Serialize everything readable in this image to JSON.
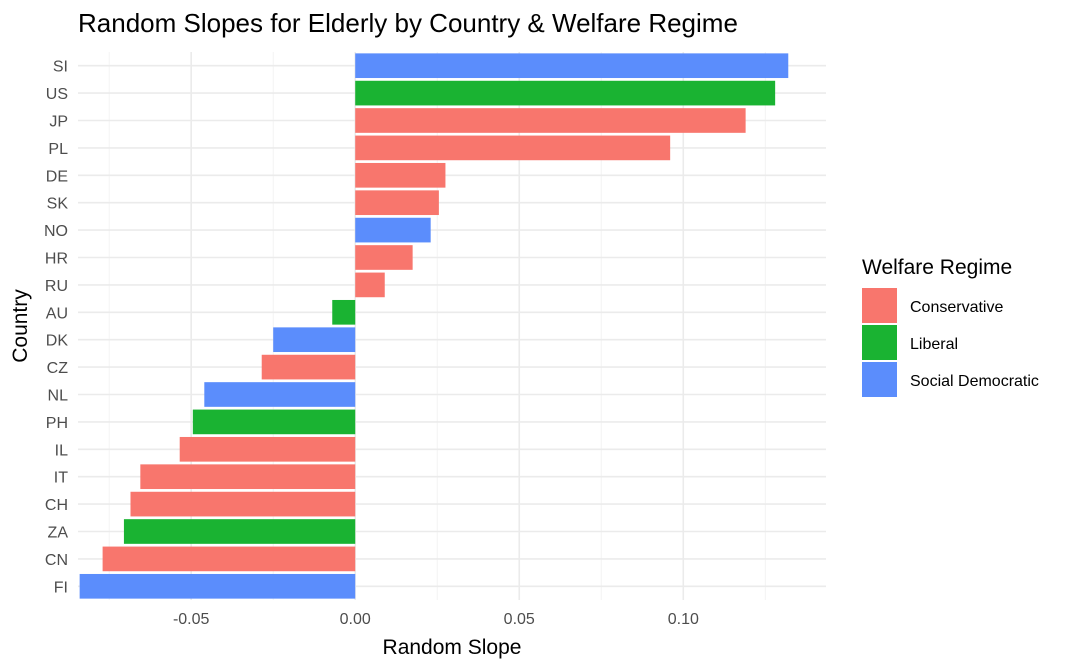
{
  "chart_data": {
    "type": "bar",
    "orientation": "horizontal",
    "title": "Random Slopes for Elderly by Country & Welfare Regime",
    "xlabel": "Random Slope",
    "ylabel": "Country",
    "xlim": [
      -0.0845,
      0.1435
    ],
    "x_ticks": [
      -0.05,
      0.0,
      0.05,
      0.1
    ],
    "x_tick_labels": [
      "-0.05",
      "0.00",
      "0.05",
      "0.10"
    ],
    "grid": true,
    "legend": {
      "title": "Welfare Regime",
      "position": "right",
      "entries": [
        {
          "name": "Conservative",
          "color": "#F8766D"
        },
        {
          "name": "Liberal",
          "color": "#1AB332"
        },
        {
          "name": "Social Democratic",
          "color": "#5B8DFC"
        }
      ]
    },
    "bars": [
      {
        "category": "SI",
        "value": 0.132,
        "group": "Social Democratic"
      },
      {
        "category": "US",
        "value": 0.128,
        "group": "Liberal"
      },
      {
        "category": "JP",
        "value": 0.119,
        "group": "Conservative"
      },
      {
        "category": "PL",
        "value": 0.096,
        "group": "Conservative"
      },
      {
        "category": "DE",
        "value": 0.0275,
        "group": "Conservative"
      },
      {
        "category": "SK",
        "value": 0.0255,
        "group": "Conservative"
      },
      {
        "category": "NO",
        "value": 0.023,
        "group": "Social Democratic"
      },
      {
        "category": "HR",
        "value": 0.0175,
        "group": "Conservative"
      },
      {
        "category": "RU",
        "value": 0.009,
        "group": "Conservative"
      },
      {
        "category": "AU",
        "value": -0.007,
        "group": "Liberal"
      },
      {
        "category": "DK",
        "value": -0.025,
        "group": "Social Democratic"
      },
      {
        "category": "CZ",
        "value": -0.0285,
        "group": "Conservative"
      },
      {
        "category": "NL",
        "value": -0.046,
        "group": "Social Democratic"
      },
      {
        "category": "PH",
        "value": -0.0495,
        "group": "Liberal"
      },
      {
        "category": "IL",
        "value": -0.0535,
        "group": "Conservative"
      },
      {
        "category": "IT",
        "value": -0.0655,
        "group": "Conservative"
      },
      {
        "category": "CH",
        "value": -0.0685,
        "group": "Conservative"
      },
      {
        "category": "ZA",
        "value": -0.0705,
        "group": "Liberal"
      },
      {
        "category": "CN",
        "value": -0.077,
        "group": "Conservative"
      },
      {
        "category": "FI",
        "value": -0.084,
        "group": "Social Democratic"
      }
    ]
  }
}
